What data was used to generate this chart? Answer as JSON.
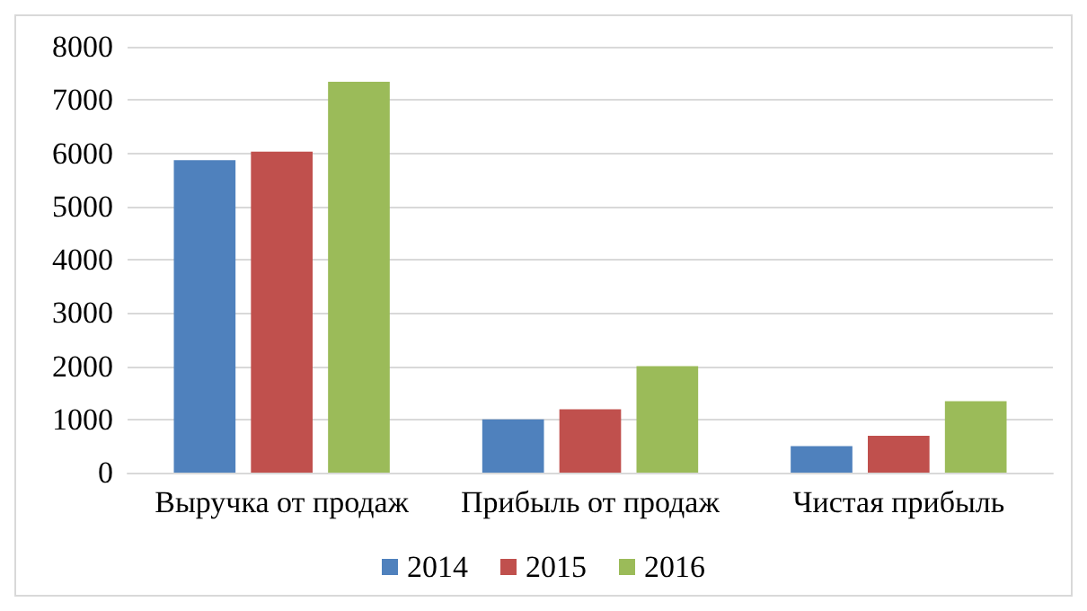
{
  "chart_data": {
    "type": "bar",
    "categories": [
      "Выручка от продаж",
      "Прибыль от продаж",
      "Чистая прибыль"
    ],
    "series": [
      {
        "name": "2014",
        "color": "#4f81bd",
        "values": [
          5870,
          1000,
          500
        ]
      },
      {
        "name": "2015",
        "color": "#c0504d",
        "values": [
          6030,
          1190,
          690
        ]
      },
      {
        "name": "2016",
        "color": "#9bbb59",
        "values": [
          7340,
          2000,
          1340
        ]
      }
    ],
    "ylim": [
      0,
      8000
    ],
    "yticks": [
      0,
      1000,
      2000,
      3000,
      4000,
      5000,
      6000,
      7000,
      8000
    ],
    "grid": "y",
    "legend": "bottom"
  }
}
